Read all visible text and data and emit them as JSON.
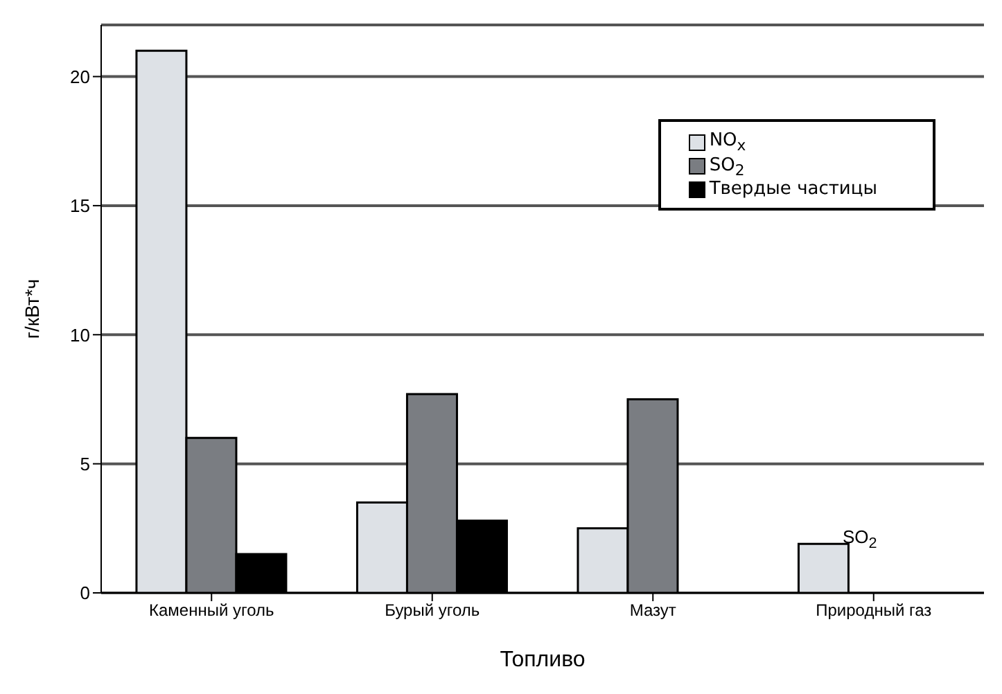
{
  "chart_data": {
    "type": "bar",
    "xlabel": "Топливо",
    "ylabel": "г/кВт*ч",
    "categories": [
      "Каменный уголь",
      "Бурый уголь",
      "Мазут",
      "Природный газ"
    ],
    "series": [
      {
        "name": "NO$_{x}$",
        "color": "#dde1e6",
        "values": [
          21,
          3.5,
          2.5,
          1.9
        ]
      },
      {
        "name": "SO$_{2}$",
        "color": "#7a7d82",
        "values": [
          6,
          7.7,
          7.5,
          null
        ]
      },
      {
        "name": "Твердые частицы",
        "color": "#000000",
        "values": [
          1.5,
          2.8,
          null,
          null
        ]
      }
    ],
    "ylim": [
      0,
      22
    ],
    "yticks": [
      0,
      5,
      10,
      15,
      20
    ],
    "grid": "y",
    "legend": "top right",
    "annotations": [
      "SO$_{2}$"
    ]
  }
}
